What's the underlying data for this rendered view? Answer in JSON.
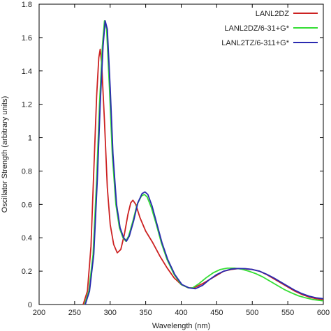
{
  "chart_data": {
    "type": "line",
    "title": "",
    "xlabel": "Wavelength (nm)",
    "ylabel": "Oscillator Strength (arbitrary units)",
    "xlim": [
      200,
      600
    ],
    "ylim": [
      0,
      1.8
    ],
    "x_ticks": [
      200,
      250,
      300,
      350,
      400,
      450,
      500,
      550,
      600
    ],
    "y_ticks": [
      0,
      0.2,
      0.4,
      0.6,
      0.8,
      1,
      1.2,
      1.4,
      1.6,
      1.8
    ],
    "grid": false,
    "legend_position": "top-right",
    "series": [
      {
        "name": "LANL2DZ",
        "color": "#cc2222",
        "points": [
          [
            262,
            0
          ],
          [
            268,
            0.08
          ],
          [
            273,
            0.35
          ],
          [
            277,
            0.8
          ],
          [
            281,
            1.25
          ],
          [
            284,
            1.48
          ],
          [
            286,
            1.53
          ],
          [
            288,
            1.45
          ],
          [
            292,
            1.1
          ],
          [
            296,
            0.7
          ],
          [
            300,
            0.48
          ],
          [
            305,
            0.36
          ],
          [
            310,
            0.31
          ],
          [
            315,
            0.33
          ],
          [
            320,
            0.42
          ],
          [
            325,
            0.54
          ],
          [
            329,
            0.61
          ],
          [
            332,
            0.625
          ],
          [
            336,
            0.6
          ],
          [
            342,
            0.52
          ],
          [
            350,
            0.44
          ],
          [
            360,
            0.37
          ],
          [
            370,
            0.29
          ],
          [
            380,
            0.22
          ],
          [
            390,
            0.16
          ],
          [
            400,
            0.12
          ],
          [
            410,
            0.1
          ],
          [
            418,
            0.1
          ],
          [
            430,
            0.125
          ],
          [
            440,
            0.15
          ],
          [
            450,
            0.175
          ],
          [
            460,
            0.2
          ],
          [
            470,
            0.21
          ],
          [
            480,
            0.215
          ],
          [
            490,
            0.214
          ],
          [
            500,
            0.21
          ],
          [
            510,
            0.2
          ],
          [
            520,
            0.18
          ],
          [
            530,
            0.155
          ],
          [
            540,
            0.13
          ],
          [
            550,
            0.105
          ],
          [
            560,
            0.08
          ],
          [
            570,
            0.06
          ],
          [
            580,
            0.045
          ],
          [
            590,
            0.035
          ],
          [
            600,
            0.03
          ]
        ]
      },
      {
        "name": "LANL2DZ/6-31+G*",
        "color": "#33dd33",
        "points": [
          [
            264,
            0
          ],
          [
            270,
            0.08
          ],
          [
            276,
            0.3
          ],
          [
            281,
            0.75
          ],
          [
            285,
            1.2
          ],
          [
            289,
            1.55
          ],
          [
            292,
            1.7
          ],
          [
            295,
            1.65
          ],
          [
            299,
            1.3
          ],
          [
            303,
            0.9
          ],
          [
            308,
            0.6
          ],
          [
            313,
            0.46
          ],
          [
            318,
            0.4
          ],
          [
            322,
            0.38
          ],
          [
            326,
            0.41
          ],
          [
            332,
            0.5
          ],
          [
            338,
            0.6
          ],
          [
            344,
            0.65
          ],
          [
            348,
            0.66
          ],
          [
            352,
            0.645
          ],
          [
            358,
            0.58
          ],
          [
            365,
            0.48
          ],
          [
            372,
            0.37
          ],
          [
            380,
            0.27
          ],
          [
            390,
            0.18
          ],
          [
            400,
            0.12
          ],
          [
            410,
            0.1
          ],
          [
            416,
            0.1
          ],
          [
            425,
            0.125
          ],
          [
            435,
            0.16
          ],
          [
            445,
            0.19
          ],
          [
            455,
            0.21
          ],
          [
            465,
            0.218
          ],
          [
            475,
            0.218
          ],
          [
            485,
            0.212
          ],
          [
            495,
            0.2
          ],
          [
            505,
            0.185
          ],
          [
            515,
            0.165
          ],
          [
            525,
            0.14
          ],
          [
            535,
            0.115
          ],
          [
            545,
            0.09
          ],
          [
            555,
            0.07
          ],
          [
            565,
            0.052
          ],
          [
            575,
            0.04
          ],
          [
            585,
            0.03
          ],
          [
            600,
            0.022
          ]
        ]
      },
      {
        "name": "LANL2TZ/6-311+G*",
        "color": "#2a2ab0",
        "points": [
          [
            265,
            0
          ],
          [
            271,
            0.08
          ],
          [
            277,
            0.3
          ],
          [
            282,
            0.75
          ],
          [
            286,
            1.2
          ],
          [
            290,
            1.55
          ],
          [
            293,
            1.7
          ],
          [
            296,
            1.65
          ],
          [
            300,
            1.3
          ],
          [
            304,
            0.9
          ],
          [
            309,
            0.6
          ],
          [
            314,
            0.46
          ],
          [
            319,
            0.4
          ],
          [
            323,
            0.38
          ],
          [
            327,
            0.41
          ],
          [
            333,
            0.5
          ],
          [
            339,
            0.61
          ],
          [
            345,
            0.665
          ],
          [
            349,
            0.675
          ],
          [
            353,
            0.66
          ],
          [
            359,
            0.59
          ],
          [
            366,
            0.48
          ],
          [
            373,
            0.37
          ],
          [
            381,
            0.27
          ],
          [
            391,
            0.18
          ],
          [
            401,
            0.12
          ],
          [
            411,
            0.1
          ],
          [
            420,
            0.095
          ],
          [
            430,
            0.115
          ],
          [
            440,
            0.15
          ],
          [
            450,
            0.18
          ],
          [
            460,
            0.2
          ],
          [
            470,
            0.212
          ],
          [
            480,
            0.216
          ],
          [
            490,
            0.215
          ],
          [
            500,
            0.21
          ],
          [
            510,
            0.2
          ],
          [
            520,
            0.182
          ],
          [
            530,
            0.16
          ],
          [
            540,
            0.135
          ],
          [
            550,
            0.11
          ],
          [
            560,
            0.085
          ],
          [
            570,
            0.065
          ],
          [
            580,
            0.05
          ],
          [
            590,
            0.04
          ],
          [
            600,
            0.035
          ]
        ]
      }
    ]
  }
}
